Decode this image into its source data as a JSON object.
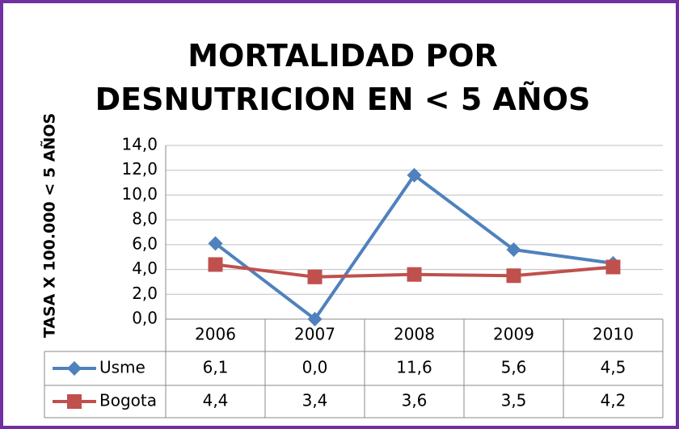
{
  "chart_data": {
    "type": "line",
    "title": "MORTALIDAD POR DESNUTRICION EN < 5 AÑOS",
    "y_label": "TASA X 100.000 < 5 AÑOS",
    "categories": [
      "2006",
      "2007",
      "2008",
      "2009",
      "2010"
    ],
    "series": [
      {
        "name": "Usme",
        "color": "#4f81bd",
        "marker": "diamond",
        "values": [
          6.1,
          0.0,
          11.6,
          5.6,
          4.5
        ],
        "value_labels": [
          "6,1",
          "0,0",
          "11,6",
          "5,6",
          "4,5"
        ]
      },
      {
        "name": "Bogota",
        "color": "#c0504d",
        "marker": "square",
        "values": [
          4.4,
          3.4,
          3.6,
          3.5,
          4.2
        ],
        "value_labels": [
          "4,4",
          "3,4",
          "3,6",
          "3,5",
          "4,2"
        ]
      }
    ],
    "ylim": [
      0,
      14
    ],
    "yticks": [
      {
        "value": 0,
        "label": "0,0"
      },
      {
        "value": 2,
        "label": "2,0"
      },
      {
        "value": 4,
        "label": "4,0"
      },
      {
        "value": 6,
        "label": "6,0"
      },
      {
        "value": 8,
        "label": "8,0"
      },
      {
        "value": 10,
        "label": "10,0"
      },
      {
        "value": 12,
        "label": "12,0"
      },
      {
        "value": 14,
        "label": "14,0"
      }
    ],
    "grid": true
  }
}
